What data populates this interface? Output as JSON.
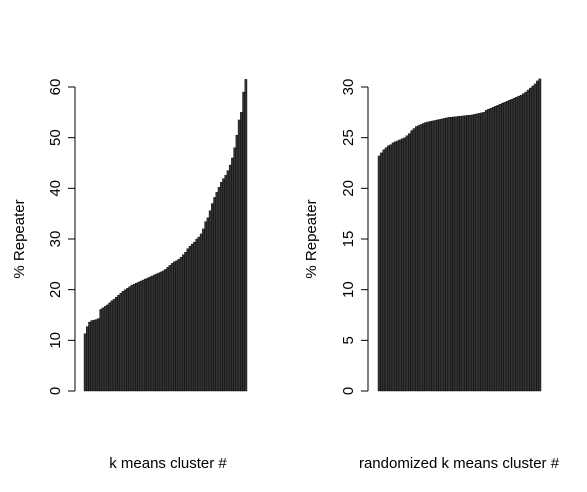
{
  "chart_data": [
    {
      "type": "bar",
      "title": "",
      "xlabel": "k means cluster #",
      "ylabel": "% Repeater",
      "ylim": [
        0,
        62
      ],
      "yticks": [
        0,
        10,
        20,
        30,
        40,
        50,
        60
      ],
      "bar_color": "#333333",
      "values": [
        11.3,
        12.7,
        13.6,
        13.9,
        14.0,
        14.1,
        14.3,
        16.1,
        16.4,
        16.7,
        17.0,
        17.4,
        17.8,
        18.1,
        18.5,
        18.9,
        19.3,
        19.7,
        20.0,
        20.3,
        20.6,
        20.9,
        21.1,
        21.3,
        21.5,
        21.7,
        21.9,
        22.1,
        22.3,
        22.5,
        22.7,
        22.9,
        23.1,
        23.3,
        23.5,
        23.7,
        24.0,
        24.4,
        24.8,
        25.2,
        25.5,
        25.7,
        26.0,
        26.4,
        26.9,
        27.4,
        28.1,
        28.6,
        29.0,
        29.4,
        30.0,
        30.4,
        31.0,
        32.0,
        33.4,
        34.2,
        35.6,
        37.0,
        38.2,
        39.2,
        40.2,
        41.2,
        41.9,
        42.6,
        43.5,
        44.6,
        46.0,
        48.0,
        50.5,
        53.5,
        55.0,
        59.0,
        61.5
      ]
    },
    {
      "type": "bar",
      "title": "",
      "xlabel": "randomized k means cluster #",
      "ylabel": "% Repeater",
      "ylim": [
        0,
        31
      ],
      "yticks": [
        0,
        5,
        10,
        15,
        20,
        25,
        30
      ],
      "bar_color": "#333333",
      "values": [
        23.2,
        23.5,
        23.8,
        24.0,
        24.2,
        24.3,
        24.5,
        24.6,
        24.7,
        24.8,
        24.9,
        25.0,
        25.2,
        25.4,
        25.7,
        25.9,
        26.1,
        26.2,
        26.3,
        26.4,
        26.5,
        26.55,
        26.6,
        26.65,
        26.7,
        26.75,
        26.8,
        26.85,
        26.9,
        26.95,
        27.0,
        27.02,
        27.05,
        27.07,
        27.1,
        27.12,
        27.15,
        27.17,
        27.2,
        27.22,
        27.25,
        27.3,
        27.35,
        27.4,
        27.45,
        27.5,
        27.7,
        27.8,
        27.9,
        28.0,
        28.1,
        28.2,
        28.3,
        28.4,
        28.5,
        28.6,
        28.7,
        28.8,
        28.9,
        29.0,
        29.1,
        29.2,
        29.35,
        29.5,
        29.7,
        29.9,
        30.1,
        30.3,
        30.6,
        30.8
      ]
    }
  ]
}
